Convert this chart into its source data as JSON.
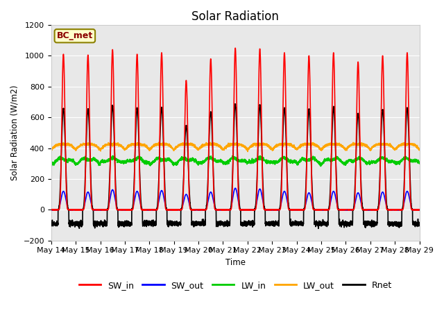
{
  "title": "Solar Radiation",
  "ylabel": "Solar Radiation (W/m2)",
  "xlabel": "Time",
  "ylim": [
    -200,
    1200
  ],
  "background_color": "#ffffff",
  "plot_bg_color": "#e8e8e8",
  "grid_color": "#ffffff",
  "annotation_text": "BC_met",
  "annotation_bg": "#ffffcc",
  "annotation_border": "#8B8000",
  "annotation_text_color": "#8B0000",
  "tick_labels": [
    "May 14",
    "May 15",
    "May 16",
    "May 17",
    "May 18",
    "May 19",
    "May 20",
    "May 21",
    "May 22",
    "May 23",
    "May 24",
    "May 25",
    "May 26",
    "May 27",
    "May 28",
    "May 29"
  ],
  "series": {
    "SW_in": {
      "color": "#ff0000",
      "lw": 1.2
    },
    "SW_out": {
      "color": "#0000ff",
      "lw": 1.2
    },
    "LW_in": {
      "color": "#00cc00",
      "lw": 1.2
    },
    "LW_out": {
      "color": "#ffa500",
      "lw": 1.2
    },
    "Rnet": {
      "color": "#000000",
      "lw": 1.2
    }
  },
  "n_days": 15,
  "pts_per_day": 288,
  "sw_in_peaks": [
    1010,
    1005,
    1040,
    1010,
    1020,
    840,
    980,
    1050,
    1045,
    1020,
    1000,
    1020,
    960,
    1000,
    1020
  ],
  "sw_out_peaks": [
    120,
    115,
    130,
    120,
    125,
    100,
    115,
    140,
    135,
    120,
    110,
    120,
    110,
    115,
    120
  ],
  "lw_in_base": 300,
  "lw_in_amp": 30,
  "lw_out_base": 390,
  "lw_out_dip": 40,
  "rnet_night": -90
}
